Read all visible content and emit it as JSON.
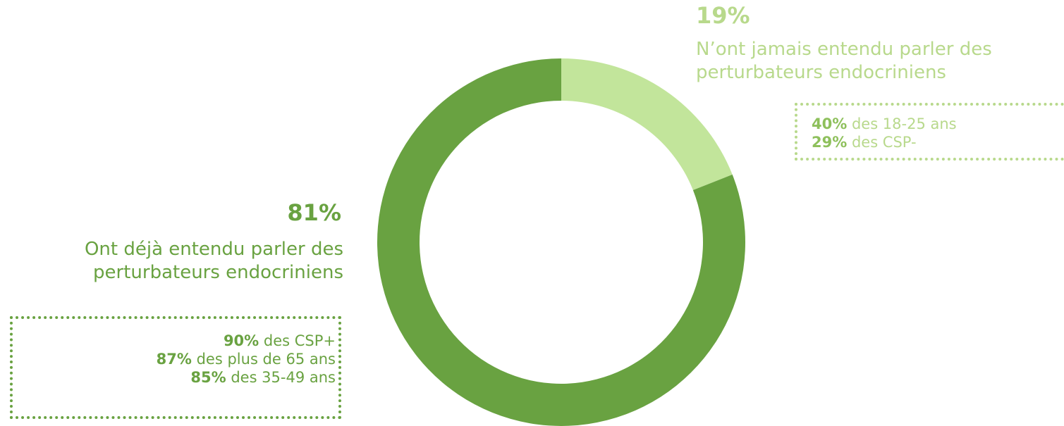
{
  "chart_data": {
    "type": "pie",
    "variant": "donut",
    "slices": [
      {
        "label": "N’ont jamais entendu parler des perturbateurs endocriniens",
        "value": 19,
        "color": "#c2e59b"
      },
      {
        "label": "Ont déjà entendu parler des perturbateurs endocriniens",
        "value": 81,
        "color": "#69a241"
      }
    ]
  },
  "annotations": {
    "small": {
      "percent": "19%",
      "label_line1": "N’ont jamais entendu parler des",
      "label_line2": "perturbateurs endocriniens",
      "details": [
        {
          "value": "40%",
          "text": " des 18-25 ans"
        },
        {
          "value": "29%",
          "text": " des CSP-"
        }
      ]
    },
    "large": {
      "percent": "81%",
      "label_line1": "Ont déjà entendu parler des",
      "label_line2": "perturbateurs endocriniens",
      "details": [
        {
          "value": "90%",
          "text": " des CSP+"
        },
        {
          "value": "87%",
          "text": " des plus de 65 ans"
        },
        {
          "value": "85%",
          "text": " des 35-49 ans"
        }
      ]
    }
  }
}
